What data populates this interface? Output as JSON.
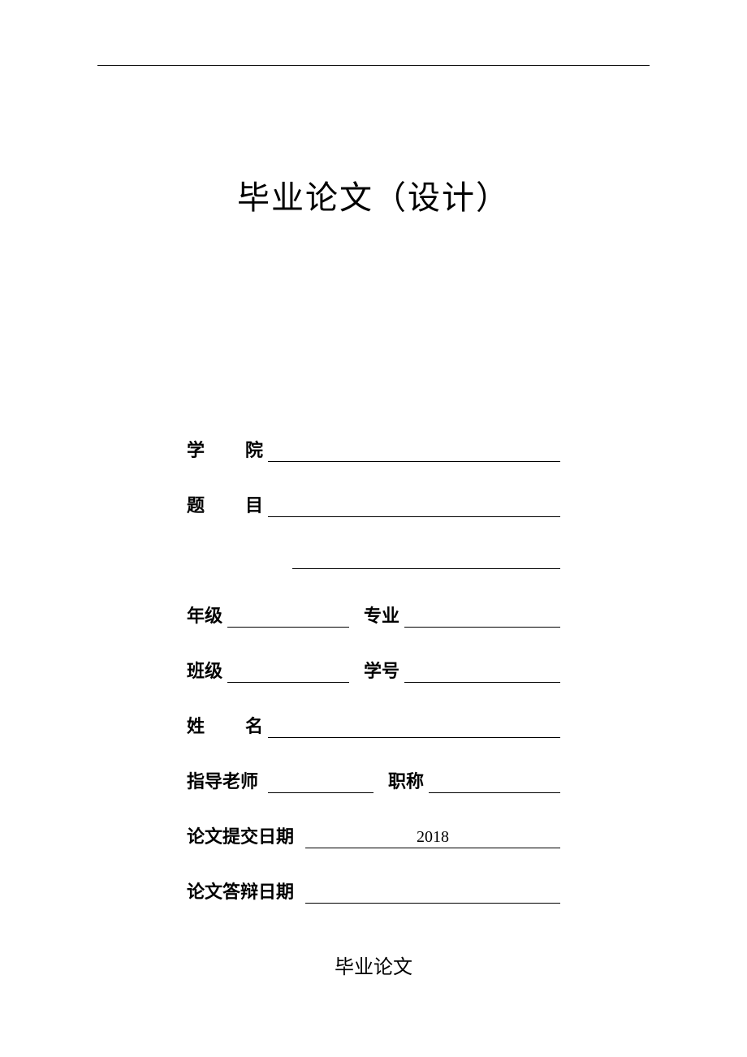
{
  "document": {
    "title": "毕业论文（设计）",
    "footer": "毕业论文",
    "background_color": "#ffffff",
    "text_color": "#000000",
    "rule_color": "#000000"
  },
  "form": {
    "labels": {
      "college_char1": "学",
      "college_char2": "院",
      "topic_char1": "题",
      "topic_char2": "目",
      "grade": "年级",
      "major": "专业",
      "class": "班级",
      "student_id": "学号",
      "name_char1": "姓",
      "name_char2": "名",
      "advisor": "指导老师",
      "title_rank": "职称",
      "submit_date": "论文提交日期",
      "defense_date": "论文答辩日期"
    },
    "values": {
      "college": "",
      "topic_line1": "",
      "topic_line2": "",
      "grade": "",
      "major": "",
      "class": "",
      "student_id": "",
      "name": "",
      "advisor": "",
      "title_rank": "",
      "submit_date": "2018",
      "defense_date": ""
    }
  },
  "typography": {
    "title_fontsize": 40,
    "label_fontsize": 22,
    "footer_fontsize": 24,
    "font_family": "SimSun"
  }
}
